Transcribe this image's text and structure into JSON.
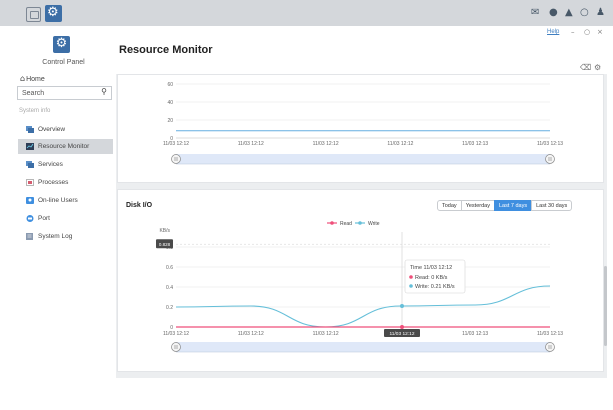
{
  "colors": {
    "accent": "#3f8fe0",
    "read": "#ef4f7a",
    "write": "#65bfd9",
    "sidebar_active": "#d4d7db"
  },
  "sidebar": {
    "title": "Control Panel",
    "home": "Home",
    "search": {
      "placeholder": "Search"
    },
    "section": "System info",
    "items": [
      {
        "label": "Overview",
        "icon": "overview-icon"
      },
      {
        "label": "Resource Monitor",
        "icon": "resource-monitor-icon",
        "active": true
      },
      {
        "label": "Services",
        "icon": "services-icon"
      },
      {
        "label": "Processes",
        "icon": "processes-icon"
      },
      {
        "label": "On-line Users",
        "icon": "online-users-icon"
      },
      {
        "label": "Port",
        "icon": "port-icon"
      },
      {
        "label": "System Log",
        "icon": "system-log-icon"
      }
    ]
  },
  "header": {
    "title": "Resource Monitor",
    "help": "Help"
  },
  "top_chart": {
    "y_ticks": [
      "60",
      "40",
      "20",
      "0"
    ],
    "x_ticks": [
      "11/03 12:12",
      "11/03 12:12",
      "11/03 12:12",
      "11/03 12:12",
      "11/03 12:13",
      "11/03 12:13"
    ]
  },
  "disk_io": {
    "title": "Disk I/O",
    "range_buttons": [
      "Today",
      "Yesterday",
      "Last 7 days",
      "Last 30 days"
    ],
    "selected_range": "Last 7 days",
    "unit": "KB/s",
    "y_tick_labels": [
      "0.8",
      "0.6",
      "0.4",
      "0.2",
      "0"
    ],
    "y_highlight": "0.828",
    "x_tick_labels": [
      "11/03 12:12",
      "11/03 12:12",
      "11/03 12:12",
      "11/03 12:12",
      "11/03 12:13",
      "11/03 12:13"
    ],
    "x_highlight": "11/03 12:12",
    "tooltip": {
      "time": "Time 11/03 12:12",
      "read": "Read:  0 KB/s",
      "write": "Write:  0.21 KB/s"
    }
  },
  "chart_data": [
    {
      "type": "line",
      "yticks": [
        0,
        20,
        40,
        60
      ],
      "ylim": [
        0,
        70
      ],
      "x": [
        "11/03 12:12",
        "11/03 12:12",
        "11/03 12:12",
        "11/03 12:12",
        "11/03 12:13",
        "11/03 12:13"
      ],
      "series": [
        {
          "values": [
            8,
            8,
            8,
            8,
            8,
            8
          ]
        }
      ]
    },
    {
      "type": "line",
      "title": "Disk I/O",
      "ylabel": "KB/s",
      "ylim": [
        0,
        0.9
      ],
      "yticks": [
        0,
        0.2,
        0.4,
        0.6,
        0.8
      ],
      "x": [
        "11/03 12:12",
        "11/03 12:12",
        "11/03 12:12",
        "11/03 12:12",
        "11/03 12:13",
        "11/03 12:13"
      ],
      "legend": "top-center",
      "series": [
        {
          "name": "Read",
          "values": [
            0,
            0,
            0,
            0,
            0,
            0
          ]
        },
        {
          "name": "Write",
          "values": [
            0.2,
            0.21,
            0,
            0.21,
            0.22,
            0.41
          ]
        }
      ]
    }
  ]
}
